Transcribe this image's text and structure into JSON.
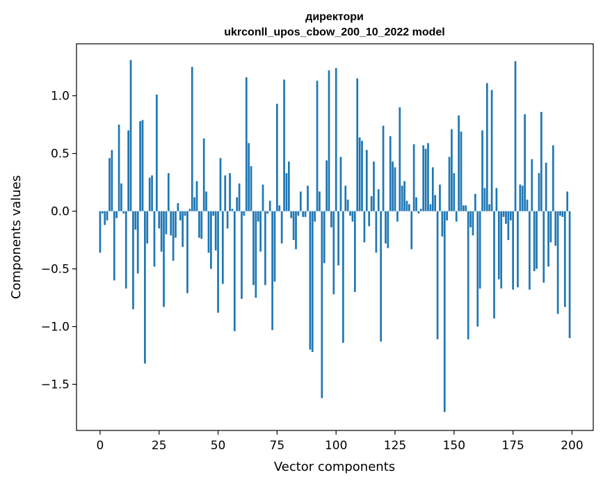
{
  "chart_data": {
    "type": "bar",
    "title_lines": [
      "директори",
      "ukrconll_upos_cbow_200_10_2022 model"
    ],
    "xlabel": "Vector components",
    "ylabel": "Components values",
    "xlim": [
      -10,
      209
    ],
    "ylim": [
      -1.9,
      1.45
    ],
    "xticks": [
      0,
      25,
      50,
      75,
      100,
      125,
      150,
      175,
      200
    ],
    "yticks": [
      -1.5,
      -1.0,
      -0.5,
      0.0,
      0.5,
      1.0
    ],
    "ytick_labels": [
      "−1.5",
      "−1.0",
      "−0.5",
      "0.0",
      "0.5",
      "1.0"
    ],
    "bar_color": "#1f77b4",
    "grid": false,
    "values": [
      -0.36,
      -0.02,
      -0.12,
      -0.08,
      0.46,
      0.53,
      -0.6,
      -0.06,
      0.75,
      0.24,
      -0.02,
      -0.67,
      0.7,
      1.31,
      -0.85,
      -0.16,
      -0.54,
      0.78,
      0.79,
      -1.32,
      -0.28,
      0.29,
      0.31,
      -0.48,
      1.01,
      -0.15,
      -0.35,
      -0.83,
      -0.2,
      0.33,
      -0.21,
      -0.43,
      -0.23,
      0.07,
      -0.08,
      -0.31,
      -0.04,
      -0.71,
      0.02,
      1.25,
      0.12,
      0.26,
      -0.23,
      -0.24,
      0.63,
      0.17,
      -0.36,
      -0.5,
      -0.04,
      -0.34,
      -0.88,
      0.46,
      -0.63,
      0.31,
      -0.15,
      0.33,
      0.02,
      -1.04,
      0.12,
      0.24,
      -0.76,
      -0.04,
      1.16,
      0.59,
      0.39,
      -0.64,
      -0.75,
      -0.09,
      -0.35,
      0.23,
      -0.64,
      -0.02,
      0.09,
      -1.03,
      -0.61,
      0.93,
      0.05,
      -0.28,
      1.14,
      0.33,
      0.43,
      -0.06,
      -0.25,
      -0.33,
      -0.04,
      0.17,
      -0.05,
      -0.05,
      0.22,
      -1.2,
      -1.22,
      -0.09,
      1.13,
      0.17,
      -1.62,
      -0.45,
      0.44,
      1.22,
      -0.14,
      -0.72,
      1.24,
      -0.47,
      0.47,
      -1.14,
      0.22,
      0.1,
      -0.04,
      -0.09,
      -0.7,
      1.15,
      0.64,
      0.61,
      -0.27,
      0.53,
      -0.13,
      0.13,
      0.43,
      -0.36,
      0.19,
      -1.13,
      0.74,
      -0.28,
      -0.32,
      0.65,
      0.43,
      0.38,
      -0.09,
      0.9,
      0.22,
      0.26,
      0.09,
      0.06,
      -0.33,
      0.58,
      0.12,
      -0.02,
      0.02,
      0.57,
      0.54,
      0.59,
      0.06,
      0.38,
      0.14,
      -1.11,
      0.23,
      -0.22,
      -1.74,
      -0.08,
      0.47,
      0.71,
      0.33,
      -0.09,
      0.83,
      0.69,
      0.05,
      0.05,
      -1.11,
      -0.14,
      -0.21,
      0.15,
      -1.0,
      -0.67,
      0.7,
      0.2,
      1.11,
      0.06,
      1.05,
      -0.93,
      0.2,
      -0.59,
      -0.67,
      -0.05,
      -0.11,
      -0.25,
      -0.08,
      -0.68,
      1.3,
      -0.66,
      0.23,
      0.22,
      0.84,
      0.1,
      -0.68,
      0.45,
      -0.52,
      -0.5,
      0.33,
      0.86,
      -0.62,
      0.42,
      -0.48,
      -0.27,
      0.57,
      -0.3,
      -0.89,
      -0.04,
      -0.05,
      -0.83,
      0.17,
      -1.1
    ]
  }
}
